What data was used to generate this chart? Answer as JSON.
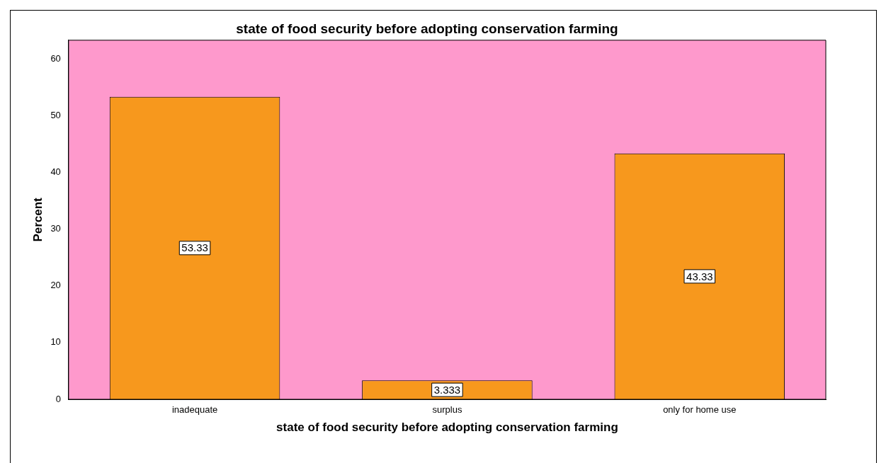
{
  "chart_data": {
    "type": "bar",
    "title": "state of food security before adopting conservation farming",
    "xlabel": "state of food security before adopting conservation farming",
    "ylabel": "Percent",
    "categories": [
      "inadequate",
      "surplus",
      "only for home use"
    ],
    "values": [
      53.33,
      3.333,
      43.33
    ],
    "color": "#f7981d",
    "ylim": [
      0,
      63.3
    ],
    "yticks": [
      0,
      10,
      20,
      30,
      40,
      50,
      60
    ],
    "grid": false,
    "legend": false,
    "data_labels": true
  }
}
